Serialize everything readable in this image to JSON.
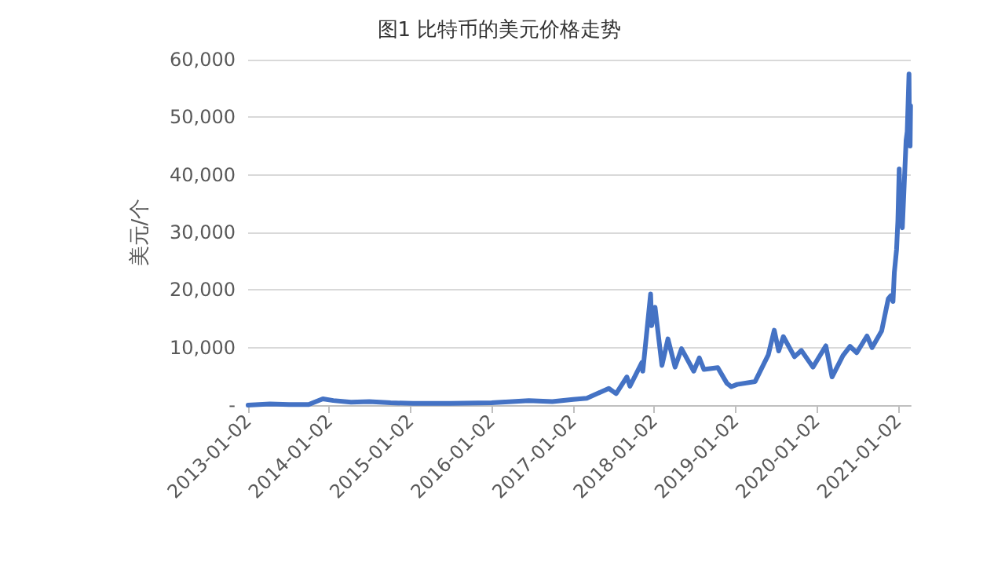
{
  "chart_data": {
    "type": "line",
    "title": "图1 比特币的美元价格走势",
    "ylabel": "美元/个",
    "x": [
      "2013-01-02",
      "2013-04-10",
      "2013-07-05",
      "2013-10-01",
      "2013-12-04",
      "2014-01-20",
      "2014-04-10",
      "2014-07-01",
      "2014-10-05",
      "2015-01-14",
      "2015-07-01",
      "2016-01-02",
      "2016-06-17",
      "2016-10-01",
      "2017-01-02",
      "2017-03-05",
      "2017-06-12",
      "2017-07-15",
      "2017-09-01",
      "2017-09-15",
      "2017-11-08",
      "2017-11-12",
      "2017-12-17",
      "2017-12-22",
      "2018-01-06",
      "2018-02-06",
      "2018-03-05",
      "2018-04-06",
      "2018-05-05",
      "2018-06-29",
      "2018-07-24",
      "2018-08-14",
      "2018-10-15",
      "2018-11-25",
      "2018-12-15",
      "2019-01-10",
      "2019-04-01",
      "2019-05-30",
      "2019-06-26",
      "2019-07-16",
      "2019-08-06",
      "2019-09-25",
      "2019-10-26",
      "2019-12-17",
      "2020-02-13",
      "2020-03-12",
      "2020-04-30",
      "2020-06-01",
      "2020-07-01",
      "2020-08-16",
      "2020-09-08",
      "2020-10-21",
      "2020-11-20",
      "2020-12-01",
      "2020-12-11",
      "2020-12-17",
      "2020-12-27",
      "2021-01-02",
      "2021-01-08",
      "2021-01-12",
      "2021-01-22",
      "2021-02-08",
      "2021-02-13",
      "2021-02-21",
      "2021-02-23",
      "2021-02-26",
      "2021-02-28"
    ],
    "series": [
      {
        "color": "#4472c4",
        "values": [
          0,
          200,
          100,
          100,
          1100,
          800,
          500,
          600,
          400,
          300,
          300,
          400,
          800,
          600,
          1000,
          1200,
          2900,
          2000,
          4900,
          3300,
          7400,
          5900,
          19300,
          13800,
          17000,
          6900,
          11500,
          6600,
          9800,
          5900,
          8200,
          6200,
          6500,
          3800,
          3200,
          3600,
          4100,
          8700,
          13000,
          9400,
          11900,
          8400,
          9500,
          6600,
          10300,
          4900,
          8600,
          10200,
          9100,
          12000,
          10000,
          12900,
          18500,
          19000,
          18000,
          23000,
          27000,
          32000,
          41000,
          34000,
          30800,
          46000,
          47500,
          57500,
          48000,
          45000,
          52000
        ]
      }
    ],
    "xlim": [
      "2013-01-02",
      "2021-03-01"
    ],
    "xticks": [
      "2013-01-02",
      "2014-01-02",
      "2015-01-02",
      "2016-01-02",
      "2017-01-02",
      "2018-01-02",
      "2019-01-02",
      "2020-01-02",
      "2021-01-02"
    ],
    "ylim": [
      0,
      60000
    ],
    "yticks": [
      {
        "value": 0,
        "label": "-"
      },
      {
        "value": 10000,
        "label": "10,000"
      },
      {
        "value": 20000,
        "label": "20,000"
      },
      {
        "value": 30000,
        "label": "30,000"
      },
      {
        "value": 40000,
        "label": "40,000"
      },
      {
        "value": 50000,
        "label": "50,000"
      },
      {
        "value": 60000,
        "label": "60,000"
      }
    ],
    "grid": "y",
    "marker": "none",
    "line_style": "solid"
  }
}
